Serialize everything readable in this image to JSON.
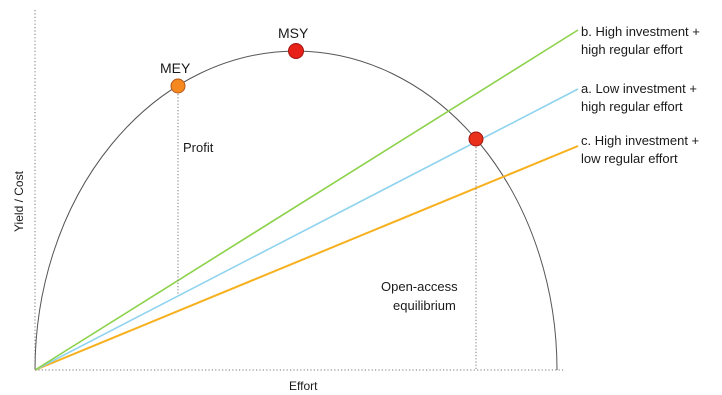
{
  "diagram": {
    "axis_labels": {
      "x": "Effort",
      "y": "Yield / Cost"
    },
    "points": {
      "mey": "MEY",
      "msy": "MSY"
    },
    "annotations": {
      "profit": "Profit",
      "open_access_line1": "Open-access",
      "open_access_line2": "equilibrium"
    },
    "cost_lines": [
      {
        "id": "b",
        "line1": "b. High investment +",
        "line2": "high regular effort",
        "color": "#8cd24a"
      },
      {
        "id": "a",
        "line1": "a. Low investment +",
        "line2": "high regular effort",
        "color": "#8fd3ee"
      },
      {
        "id": "c",
        "line1": "c. High investment +",
        "line2": "low regular effort",
        "color": "#f7b01e"
      }
    ],
    "colors": {
      "yield_curve": "#555555",
      "dotted_axis": "#777777",
      "msy_point": "#e8201a",
      "mey_point": "#f5891f",
      "open_access_point": "#e8301a"
    }
  }
}
